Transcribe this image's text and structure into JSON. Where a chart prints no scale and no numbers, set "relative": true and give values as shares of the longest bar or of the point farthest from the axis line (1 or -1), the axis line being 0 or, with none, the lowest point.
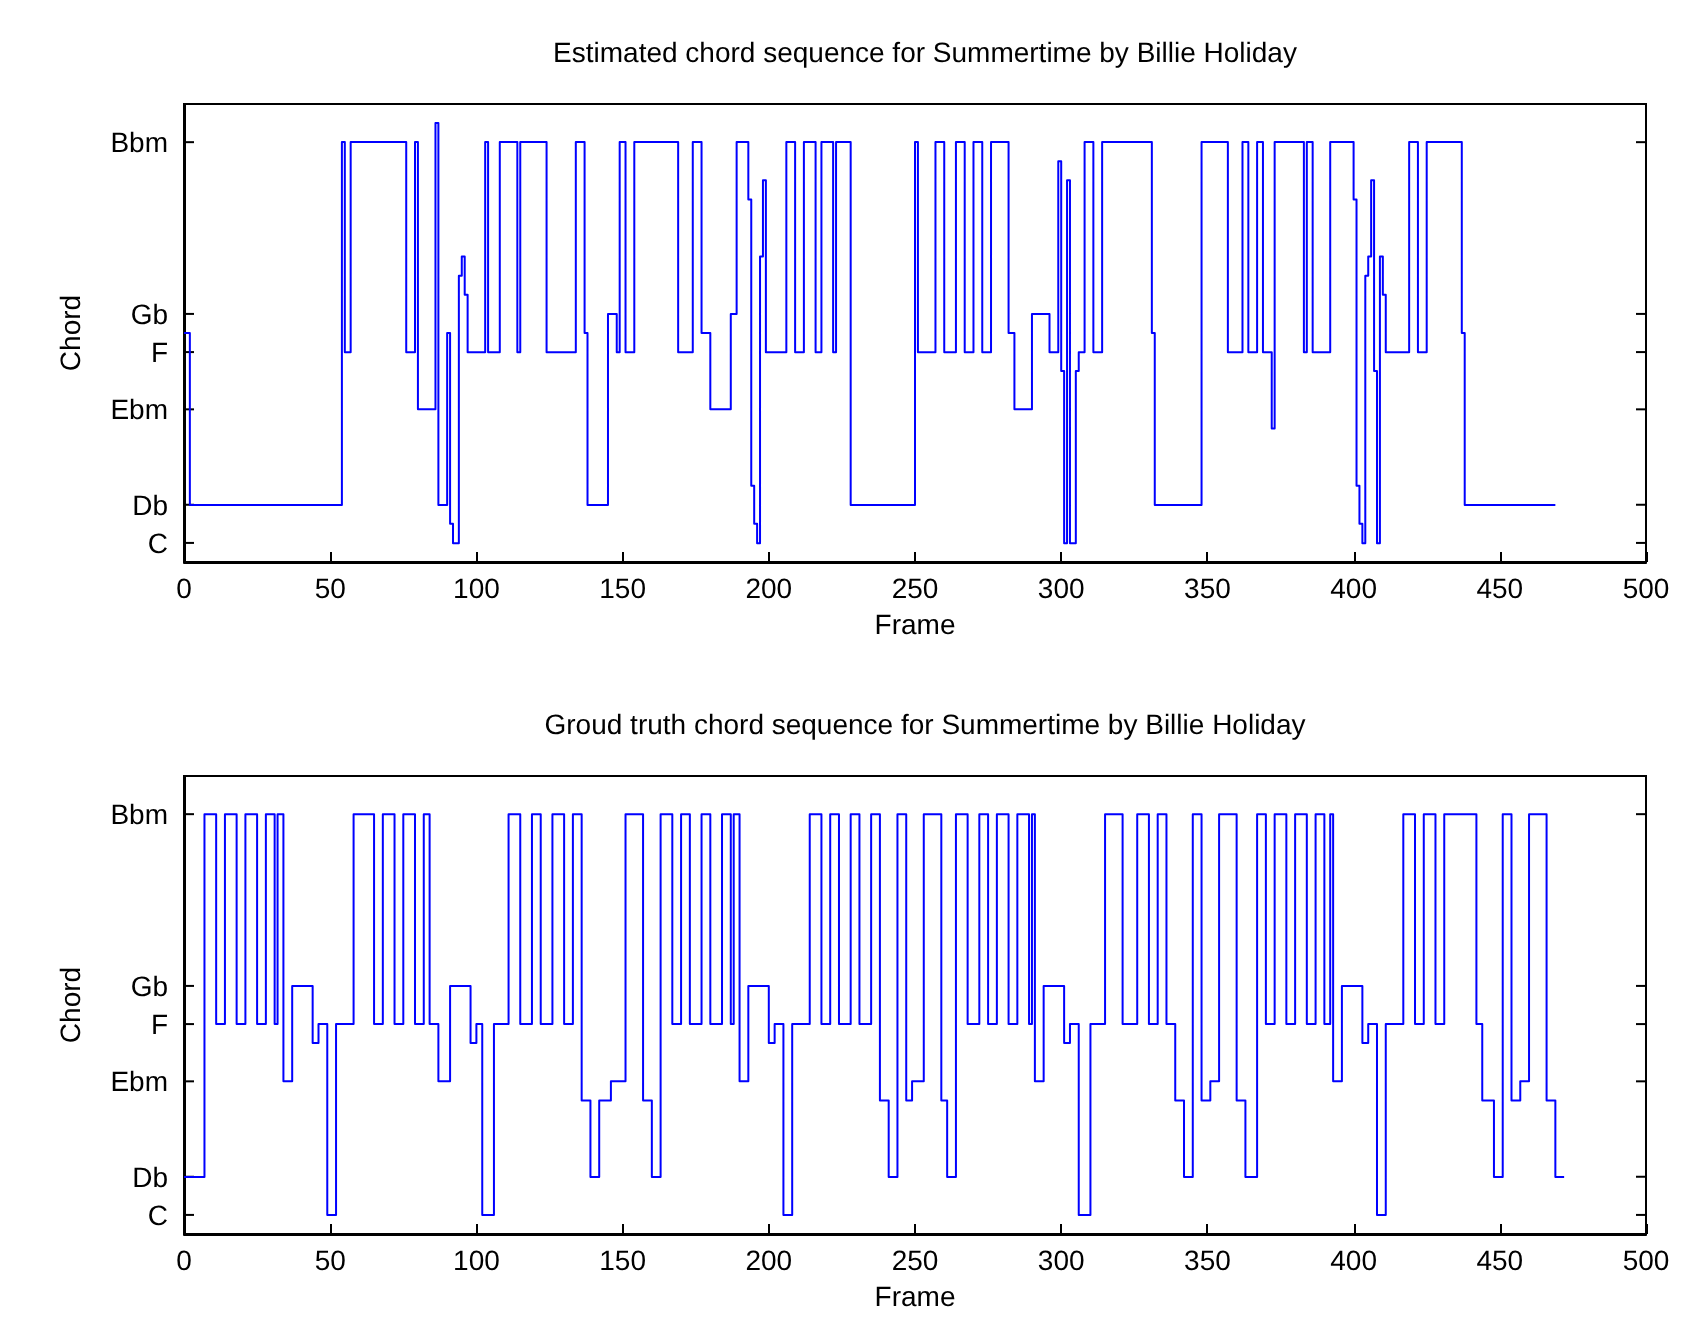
{
  "chart_data": [
    {
      "type": "step",
      "title": "Estimated chord sequence for Summertime by Billie Holiday",
      "xlabel": "Frame",
      "ylabel": "Chord",
      "xlim": [
        0,
        500
      ],
      "xticks": [
        0,
        50,
        100,
        150,
        200,
        250,
        300,
        350,
        400,
        450,
        500
      ],
      "relative": true,
      "annotations": [
        "C",
        "Db",
        "Ebm",
        "F",
        "Gb",
        "Bbm"
      ],
      "series": [
        {
          "color": "#0000ff",
          "x": [
            0,
            2,
            54,
            55,
            57,
            76,
            79,
            80,
            86,
            87,
            90,
            91,
            92,
            94,
            95,
            96,
            97,
            103,
            104,
            108,
            114,
            115,
            124,
            134,
            137,
            138,
            145,
            148,
            149,
            151,
            154,
            169,
            174,
            177,
            180,
            187,
            189,
            193,
            194,
            195,
            196,
            197,
            198,
            199,
            206,
            209,
            212,
            216,
            218,
            222,
            223,
            228,
            250,
            251,
            257,
            260,
            264,
            267,
            270,
            273,
            276,
            282,
            284,
            290,
            296,
            299,
            300,
            301,
            302,
            303,
            305,
            306,
            308,
            311,
            314,
            331,
            332,
            348,
            357,
            362,
            364,
            367,
            369,
            372,
            373,
            383,
            384,
            386,
            392,
            400,
            401,
            402,
            403,
            404,
            405,
            406,
            407,
            408,
            409,
            410,
            411,
            419,
            422,
            425,
            437,
            438,
            469
          ],
          "values": [
            0.522,
            0.13,
            0.957,
            0.478,
            0.957,
            0.478,
            0.957,
            0.348,
            1,
            0.13,
            0.522,
            0.087,
            0.043,
            0.652,
            0.696,
            0.609,
            0.478,
            0.957,
            0.478,
            0.957,
            0.478,
            0.957,
            0.478,
            0.957,
            0.522,
            0.13,
            0.565,
            0.478,
            0.957,
            0.478,
            0.957,
            0.478,
            0.957,
            0.522,
            0.348,
            0.565,
            0.957,
            0.826,
            0.174,
            0.087,
            0.043,
            0.696,
            0.87,
            0.478,
            0.957,
            0.478,
            0.957,
            0.478,
            0.957,
            0.478,
            0.957,
            0.13,
            0.957,
            0.478,
            0.957,
            0.478,
            0.957,
            0.478,
            0.957,
            0.478,
            0.957,
            0.522,
            0.348,
            0.565,
            0.478,
            0.913,
            0.435,
            0.043,
            0.87,
            0.043,
            0.435,
            0.478,
            0.957,
            0.478,
            0.957,
            0.522,
            0.13,
            0.957,
            0.478,
            0.957,
            0.478,
            0.957,
            0.478,
            0.304,
            0.957,
            0.478,
            0.957,
            0.478,
            0.957,
            0.826,
            0.174,
            0.087,
            0.043,
            0.652,
            0.696,
            0.87,
            0.435,
            0.043,
            0.696,
            0.609,
            0.478,
            0.957,
            0.478,
            0.957,
            0.522,
            0.13,
            0.13
          ]
        }
      ]
    },
    {
      "type": "step",
      "title": "Groud truth chord sequence for Summertime by Billie Holiday",
      "xlabel": "Frame",
      "ylabel": "Chord",
      "xlim": [
        0,
        500
      ],
      "xticks": [
        0,
        50,
        100,
        150,
        200,
        250,
        300,
        350,
        400,
        450,
        500
      ],
      "relative": true,
      "annotations": [
        "C",
        "Db",
        "Ebm",
        "F",
        "Gb",
        "Bbm"
      ],
      "series": [
        {
          "color": "#0000ff",
          "x": [
            0,
            7,
            11,
            14,
            18,
            21,
            25,
            28,
            31,
            32,
            34,
            37,
            44,
            46,
            49,
            52,
            58,
            65,
            68,
            72,
            75,
            79,
            82,
            84,
            87,
            91,
            98,
            100,
            102,
            106,
            111,
            115,
            119,
            122,
            126,
            130,
            133,
            136,
            139,
            142,
            146,
            151,
            157,
            160,
            163,
            167,
            170,
            173,
            177,
            180,
            184,
            187,
            188,
            190,
            193,
            200,
            202,
            205,
            208,
            214,
            218,
            221,
            224,
            228,
            231,
            235,
            238,
            241,
            244,
            247,
            249,
            253,
            259,
            261,
            264,
            268,
            272,
            275,
            278,
            282,
            285,
            289,
            290,
            291,
            294,
            301,
            303,
            306,
            310,
            315,
            321,
            326,
            330,
            333,
            336,
            339,
            342,
            345,
            348,
            351,
            354,
            360,
            363,
            367,
            370,
            373,
            377,
            380,
            384,
            387,
            390,
            392,
            393,
            396,
            403,
            405,
            408,
            411,
            417,
            421,
            424,
            428,
            431,
            442,
            444,
            448,
            451,
            454,
            457,
            460,
            466,
            469,
            472
          ],
          "values": [
            0.136,
            1,
            0.5,
            1,
            0.5,
            1,
            0.5,
            1,
            0.5,
            1,
            0.364,
            0.591,
            0.455,
            0.5,
            0.045,
            0.5,
            1,
            0.5,
            1,
            0.5,
            1,
            0.5,
            1,
            0.5,
            0.364,
            0.591,
            0.455,
            0.5,
            0.045,
            0.5,
            1,
            0.5,
            1,
            0.5,
            1,
            0.5,
            1,
            0.318,
            0.136,
            0.318,
            0.364,
            1,
            0.318,
            0.136,
            1,
            0.5,
            1,
            0.5,
            1,
            0.5,
            1,
            0.5,
            1,
            0.364,
            0.591,
            0.455,
            0.5,
            0.045,
            0.5,
            1,
            0.5,
            1,
            0.5,
            1,
            0.5,
            1,
            0.318,
            0.136,
            1,
            0.318,
            0.364,
            1,
            0.318,
            0.136,
            1,
            0.5,
            1,
            0.5,
            1,
            0.5,
            1,
            0.5,
            1,
            0.364,
            0.591,
            0.455,
            0.5,
            0.045,
            0.5,
            1,
            0.5,
            1,
            0.5,
            1,
            0.5,
            0.318,
            0.136,
            1,
            0.318,
            0.364,
            1,
            0.318,
            0.136,
            1,
            0.5,
            1,
            0.5,
            1,
            0.5,
            1,
            0.5,
            1,
            0.364,
            0.591,
            0.455,
            0.5,
            0.045,
            0.5,
            1,
            0.5,
            1,
            0.5,
            1,
            0.5,
            0.318,
            0.136,
            1,
            0.318,
            0.364,
            1,
            0.318,
            0.136,
            0.136
          ]
        }
      ]
    }
  ]
}
